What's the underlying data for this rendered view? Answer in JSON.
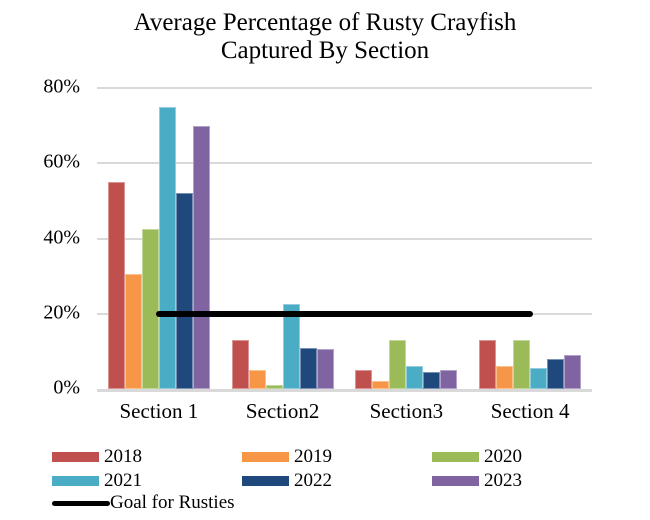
{
  "title": {
    "line1": "Average Percentage of Rusty Crayfish",
    "line2": "Captured By Section"
  },
  "chart_data": {
    "type": "bar",
    "title": "Average Percentage of Rusty Crayfish Captured By Section",
    "categories": [
      "Section 1",
      "Section2",
      "Section3",
      "Section 4"
    ],
    "series": [
      {
        "name": "2018",
        "color": "#C0504D",
        "values": [
          55,
          13,
          5,
          13
        ]
      },
      {
        "name": "2019",
        "color": "#F79646",
        "values": [
          30.5,
          5,
          2,
          6
        ]
      },
      {
        "name": "2020",
        "color": "#9BBB59",
        "values": [
          42.5,
          1,
          13,
          13
        ]
      },
      {
        "name": "2021",
        "color": "#4BACC6",
        "values": [
          75,
          22.5,
          6,
          5.5
        ]
      },
      {
        "name": "2022",
        "color": "#1F497D",
        "values": [
          52,
          11,
          4.5,
          8
        ]
      },
      {
        "name": "2023",
        "color": "#8064A2",
        "values": [
          70,
          10.5,
          5,
          9
        ]
      }
    ],
    "goal_line": {
      "label": "Goal for Rusties",
      "value": 20,
      "color": "#000000",
      "spans_categories": [
        "Section 1",
        "Section 4"
      ]
    },
    "xlabel": "",
    "ylabel": "",
    "ylim": [
      0,
      80
    ],
    "yticks": [
      0,
      20,
      40,
      60,
      80
    ],
    "ytick_labels": [
      "0%",
      "20%",
      "40%",
      "60%",
      "80%"
    ],
    "grid": true,
    "gridline_color": "#D9D9D9",
    "legend_position": "bottom"
  }
}
